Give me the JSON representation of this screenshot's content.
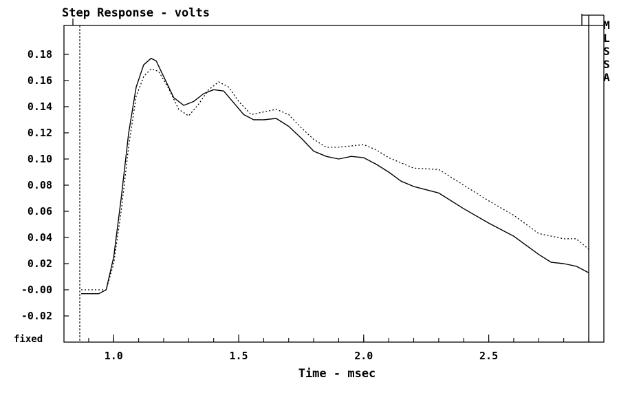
{
  "chart_data": {
    "type": "line",
    "title": "Step Response - volts",
    "xlabel": "Time - msec",
    "ylabel": "",
    "bottom_left_label": "fixed",
    "side_label": [
      "M",
      "L",
      "S",
      "S",
      "A"
    ],
    "xlim": [
      0.83,
      2.9
    ],
    "ylim": [
      -0.04,
      0.2
    ],
    "x_ticks": [
      1.0,
      1.5,
      2.0,
      2.5
    ],
    "x_tick_labels": [
      "1.0",
      "1.5",
      "2.0",
      "2.5"
    ],
    "y_ticks": [
      -0.02,
      0.0,
      0.02,
      0.04,
      0.06,
      0.08,
      0.1,
      0.12,
      0.14,
      0.16,
      0.18
    ],
    "y_tick_labels": [
      "-0.02",
      "-0.00",
      "0.02",
      "0.04",
      "0.06",
      "0.08",
      "0.10",
      "0.12",
      "0.14",
      "0.16",
      "0.18"
    ],
    "x_minor_step": 0.1,
    "marker_line_x": 0.87,
    "grid": false,
    "colors": {
      "line": "#000000",
      "background": "#ffffff"
    },
    "series": [
      {
        "style": "solid",
        "x": [
          0.87,
          0.94,
          0.97,
          1.0,
          1.03,
          1.06,
          1.09,
          1.12,
          1.15,
          1.17,
          1.2,
          1.24,
          1.28,
          1.32,
          1.36,
          1.4,
          1.44,
          1.48,
          1.52,
          1.56,
          1.6,
          1.65,
          1.7,
          1.75,
          1.8,
          1.85,
          1.9,
          1.95,
          2.0,
          2.05,
          2.1,
          2.15,
          2.2,
          2.3,
          2.4,
          2.5,
          2.6,
          2.7,
          2.75,
          2.8,
          2.85,
          2.9
        ],
        "y": [
          -0.003,
          -0.003,
          0.0,
          0.025,
          0.07,
          0.12,
          0.155,
          0.172,
          0.177,
          0.175,
          0.163,
          0.147,
          0.141,
          0.144,
          0.15,
          0.153,
          0.152,
          0.143,
          0.134,
          0.13,
          0.13,
          0.131,
          0.125,
          0.116,
          0.106,
          0.102,
          0.1,
          0.102,
          0.101,
          0.096,
          0.09,
          0.083,
          0.079,
          0.074,
          0.062,
          0.051,
          0.041,
          0.027,
          0.021,
          0.02,
          0.018,
          0.013
        ]
      },
      {
        "style": "dotted",
        "x": [
          0.87,
          0.94,
          0.97,
          1.0,
          1.03,
          1.06,
          1.09,
          1.12,
          1.15,
          1.18,
          1.22,
          1.26,
          1.3,
          1.34,
          1.38,
          1.42,
          1.46,
          1.5,
          1.55,
          1.6,
          1.65,
          1.7,
          1.75,
          1.8,
          1.85,
          1.9,
          1.95,
          2.0,
          2.05,
          2.1,
          2.2,
          2.3,
          2.4,
          2.5,
          2.6,
          2.7,
          2.8,
          2.85,
          2.9
        ],
        "y": [
          0.0,
          0.0,
          0.0,
          0.02,
          0.06,
          0.11,
          0.148,
          0.163,
          0.169,
          0.167,
          0.154,
          0.138,
          0.133,
          0.142,
          0.153,
          0.159,
          0.155,
          0.144,
          0.134,
          0.136,
          0.138,
          0.134,
          0.124,
          0.115,
          0.109,
          0.109,
          0.11,
          0.111,
          0.107,
          0.101,
          0.093,
          0.092,
          0.08,
          0.068,
          0.057,
          0.043,
          0.039,
          0.039,
          0.031
        ]
      }
    ]
  }
}
